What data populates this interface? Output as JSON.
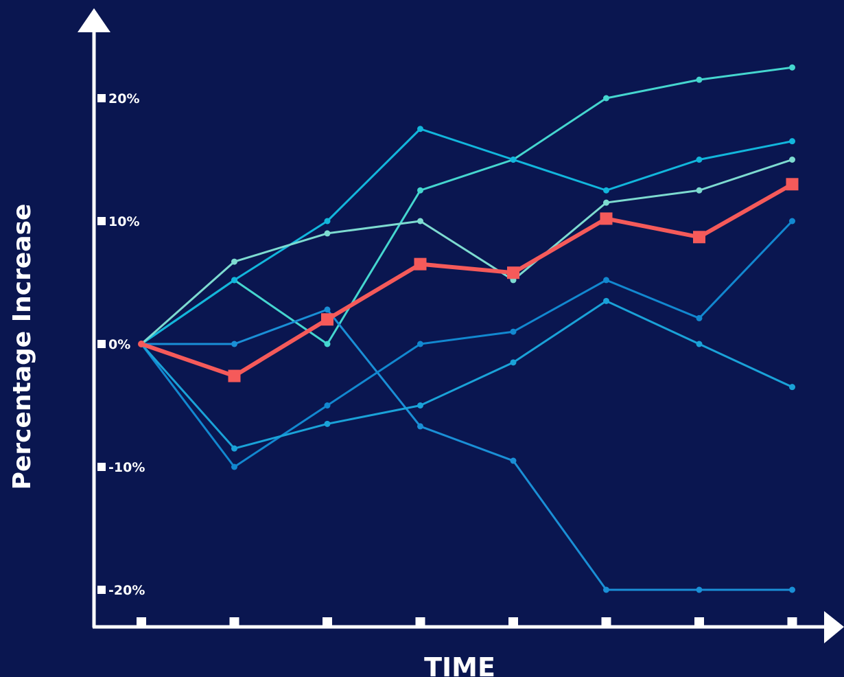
{
  "chart_data": {
    "type": "line",
    "xlabel": "TIME",
    "ylabel": "Percentage Increase",
    "ylim": [
      -22.5,
      25
    ],
    "yticks": [
      20,
      10,
      0,
      -10,
      -20
    ],
    "ytick_labels": [
      "20%",
      "10%",
      "0%",
      "-10%",
      "-20%"
    ],
    "x": [
      0,
      1,
      2,
      3,
      4,
      5,
      6,
      7
    ],
    "grid": false,
    "legend": "none",
    "series": [
      {
        "color": "#45d6cf",
        "values": [
          0,
          5.2,
          0,
          12.5,
          15,
          20,
          21.5,
          22.5
        ]
      },
      {
        "color": "#12b6dc",
        "values": [
          0,
          5.2,
          10,
          17.5,
          15,
          12.5,
          15,
          16.5
        ]
      },
      {
        "color": "#7ddbd0",
        "values": [
          0,
          6.7,
          9,
          10,
          5.2,
          11.5,
          12.5,
          15
        ]
      },
      {
        "color": "#1a8fd6",
        "values": [
          0,
          0,
          2.8,
          -6.7,
          -9.5,
          -20,
          -20,
          -20
        ]
      },
      {
        "color": "#1288d0",
        "values": [
          0,
          -10,
          -5,
          0,
          1,
          5.2,
          2.1,
          10
        ]
      },
      {
        "color": "#1aa2d8",
        "values": [
          0,
          -8.5,
          -6.5,
          -5,
          -1.5,
          3.5,
          0,
          -3.5
        ]
      },
      {
        "color": "#f55a5a",
        "highlight": true,
        "values": [
          0,
          -2.6,
          2,
          6.5,
          5.8,
          10.2,
          8.7,
          13
        ]
      }
    ]
  }
}
